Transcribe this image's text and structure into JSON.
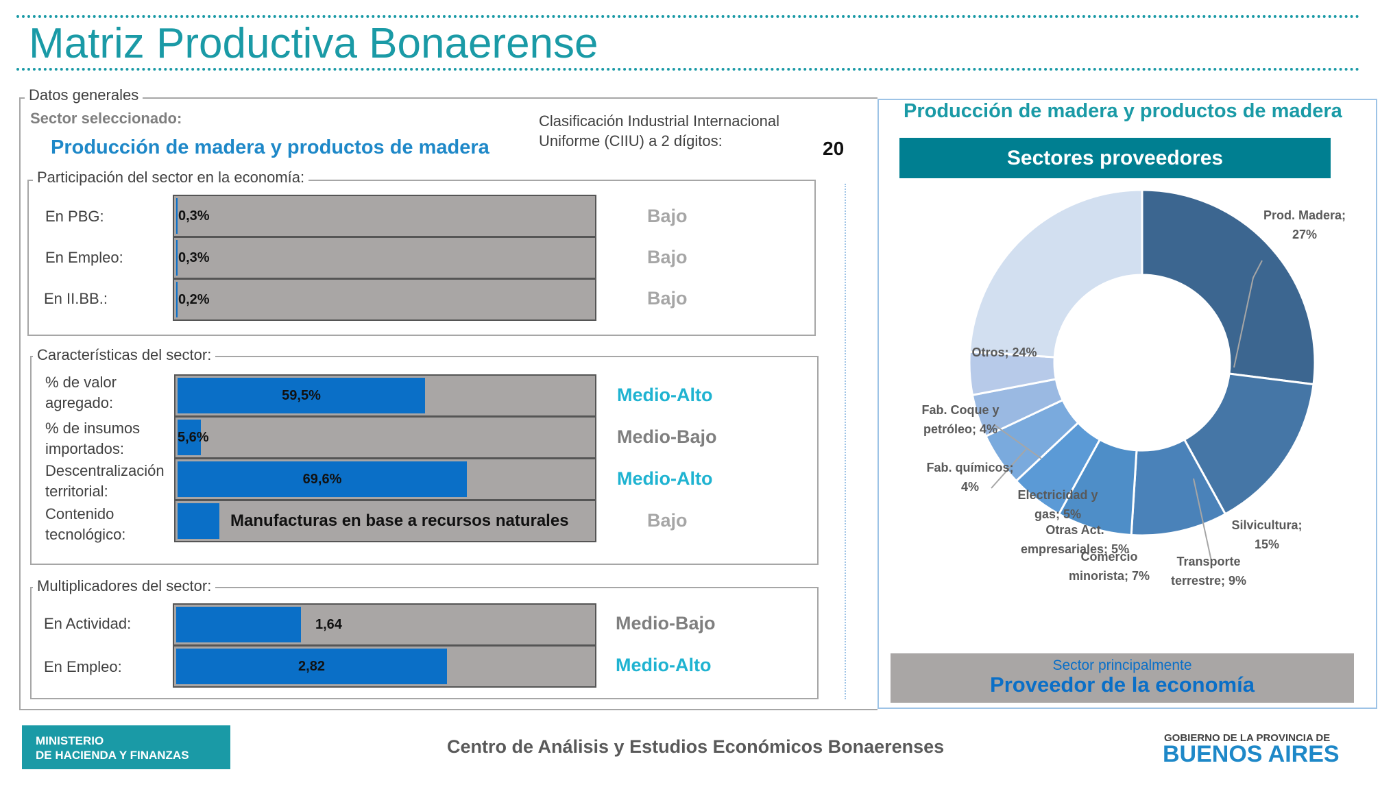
{
  "title": "Matriz Productiva Bonaerense",
  "datos_generales": {
    "legend": "Datos generales",
    "sector_label": "Sector seleccionado:",
    "sector_name": "Producción de madera y productos de madera",
    "ciiu_line1": "Clasificación Industrial Internacional",
    "ciiu_line2": "Uniforme (CIIU) a 2 dígitos:",
    "ciiu_code": "20"
  },
  "participacion": {
    "legend": "Participación del sector en la economía:",
    "rows": [
      {
        "label": "En PBG:",
        "value": "0,3%",
        "fraction": 0.003,
        "level": "Bajo"
      },
      {
        "label": "En Empleo:",
        "value": "0,3%",
        "fraction": 0.003,
        "level": "Bajo"
      },
      {
        "label": "En II.BB.:",
        "value": "0,2%",
        "fraction": 0.002,
        "level": "Bajo"
      }
    ]
  },
  "caracteristicas": {
    "legend": "Características del sector:",
    "rows": [
      {
        "label1": "% de valor",
        "label2": "agregado:",
        "value": "59,5%",
        "fraction": 0.595,
        "level": "Medio-Alto"
      },
      {
        "label1": "% de insumos",
        "label2": "importados:",
        "value": "5,6%",
        "fraction": 0.056,
        "level": "Medio-Bajo"
      },
      {
        "label1": "Descentralización",
        "label2": "territorial:",
        "value": "69,6%",
        "fraction": 0.696,
        "level": "Medio-Alto"
      },
      {
        "label1": "Contenido",
        "label2": "tecnológico:",
        "value": "Manufacturas en base a recursos naturales",
        "fraction": 0.1,
        "level": "Bajo"
      }
    ]
  },
  "multiplicadores": {
    "legend": "Multiplicadores del sector:",
    "rows": [
      {
        "label": "En Actividad:",
        "value": "1,64",
        "fraction": 0.3,
        "level": "Medio-Bajo"
      },
      {
        "label": "En Empleo:",
        "value": "2,82",
        "fraction": 0.65,
        "level": "Medio-Alto"
      }
    ]
  },
  "right_panel": {
    "title": "Producción de madera y productos de madera",
    "header": "Sectores proveedores",
    "footer_small": "Sector principalmente",
    "footer_big": "Proveedor de la economía"
  },
  "chart_data": {
    "type": "pie",
    "donut": true,
    "categories": [
      "Prod. Madera",
      "Silvicultura",
      "Transporte terrestre",
      "Comercio minorista",
      "Otras Act. empresariales",
      "Electricidad y gas",
      "Fab. químicos",
      "Fab. Coque y petróleo",
      "Otros"
    ],
    "values": [
      27,
      15,
      9,
      7,
      5,
      5,
      4,
      4,
      24
    ],
    "labels": [
      [
        "Prod. Madera;",
        "27%"
      ],
      [
        "Silvicultura;",
        "15%"
      ],
      [
        "Transporte",
        "terrestre; 9%"
      ],
      [
        "Comercio",
        "minorista; 7%"
      ],
      [
        "Otras Act.",
        "empresariales; 5%"
      ],
      [
        "Electricidad y",
        "gas; 5%"
      ],
      [
        "Fab. químicos;",
        "4%"
      ],
      [
        "Fab. Coque y",
        "petróleo; 4%"
      ],
      [
        "Otros; 24%"
      ]
    ],
    "colors": [
      "#3c6690",
      "#4576a6",
      "#4a82b9",
      "#4e8ec8",
      "#5b9ad6",
      "#7aaadd",
      "#9ab9e2",
      "#b7cae9",
      "#d2dff0"
    ]
  },
  "footer": {
    "ministerio_line1": "MINISTERIO",
    "ministerio_line2": "DE HACIENDA Y FINANZAS",
    "center": "Centro de Análisis y Estudios Económicos Bonaerenses",
    "gob_line1": "GOBIERNO DE LA PROVINCIA DE",
    "gob_line2": "BUENOS AIRES"
  }
}
